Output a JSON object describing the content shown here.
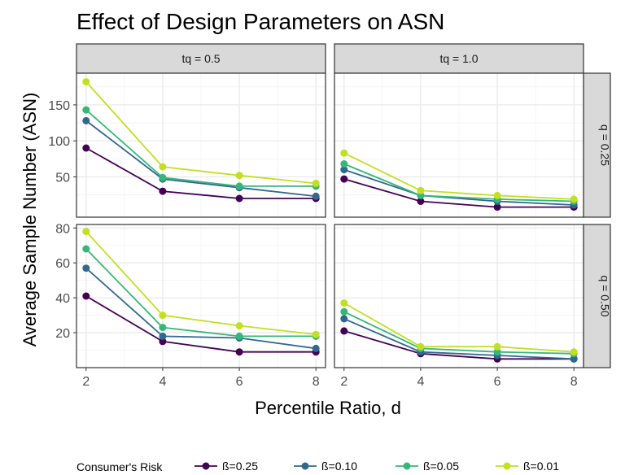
{
  "chart_data": {
    "type": "line",
    "title": "Effect of Design Parameters on ASN",
    "xlabel": "Percentile Ratio, d",
    "ylabel": "Average Sample Number (ASN)",
    "x": [
      2,
      4,
      6,
      8
    ],
    "col_facets": [
      "tq = 0.5",
      "tq = 1.0"
    ],
    "row_facets": [
      "q = 0.25",
      "q = 0.50"
    ],
    "legend": {
      "title": "Consumer's Risk",
      "position": "bottom",
      "labels": [
        "ß=0.25",
        "ß=0.10",
        "ß=0.05",
        "ß=0.01"
      ]
    },
    "series_colors": [
      "#440154",
      "#31688e",
      "#35b779",
      "#c2df23"
    ],
    "panels": [
      {
        "row": 0,
        "col": 0,
        "series": [
          {
            "name": "ß=0.25",
            "values": [
              90,
              30,
              20,
              20
            ]
          },
          {
            "name": "ß=0.10",
            "values": [
              128,
              47,
              35,
              23
            ]
          },
          {
            "name": "ß=0.05",
            "values": [
              143,
              49,
              37,
              37
            ]
          },
          {
            "name": "ß=0.01",
            "values": [
              182,
              64,
              52,
              41
            ]
          }
        ]
      },
      {
        "row": 0,
        "col": 1,
        "series": [
          {
            "name": "ß=0.25",
            "values": [
              47,
              16,
              8,
              8
            ]
          },
          {
            "name": "ß=0.10",
            "values": [
              60,
              24,
              16,
              11
            ]
          },
          {
            "name": "ß=0.05",
            "values": [
              68,
              24,
              19,
              16
            ]
          },
          {
            "name": "ß=0.01",
            "values": [
              83,
              31,
              24,
              19
            ]
          }
        ]
      },
      {
        "row": 1,
        "col": 0,
        "series": [
          {
            "name": "ß=0.25",
            "values": [
              41,
              15,
              9,
              9
            ]
          },
          {
            "name": "ß=0.10",
            "values": [
              57,
              18,
              17,
              11
            ]
          },
          {
            "name": "ß=0.05",
            "values": [
              68,
              23,
              18,
              18
            ]
          },
          {
            "name": "ß=0.01",
            "values": [
              78,
              30,
              24,
              19
            ]
          }
        ]
      },
      {
        "row": 1,
        "col": 1,
        "series": [
          {
            "name": "ß=0.25",
            "values": [
              21,
              8,
              5,
              5
            ]
          },
          {
            "name": "ß=0.10",
            "values": [
              28,
              9,
              7,
              5
            ]
          },
          {
            "name": "ß=0.05",
            "values": [
              32,
              11,
              9,
              8
            ]
          },
          {
            "name": "ß=0.01",
            "values": [
              37,
              12,
              12,
              9
            ]
          }
        ]
      }
    ],
    "axes": {
      "x": {
        "lim": [
          1.75,
          8.25
        ],
        "ticks": [
          2,
          4,
          6,
          8
        ],
        "minor": [
          3,
          5,
          7
        ]
      },
      "rows": [
        {
          "lim": [
            -6,
            194
          ],
          "ticks": [
            50,
            100,
            150
          ],
          "minor": [
            25,
            75,
            125,
            175
          ]
        },
        {
          "lim": [
            0,
            82
          ],
          "ticks": [
            20,
            40,
            60,
            80
          ],
          "minor": [
            10,
            30,
            50,
            70
          ]
        }
      ]
    }
  }
}
